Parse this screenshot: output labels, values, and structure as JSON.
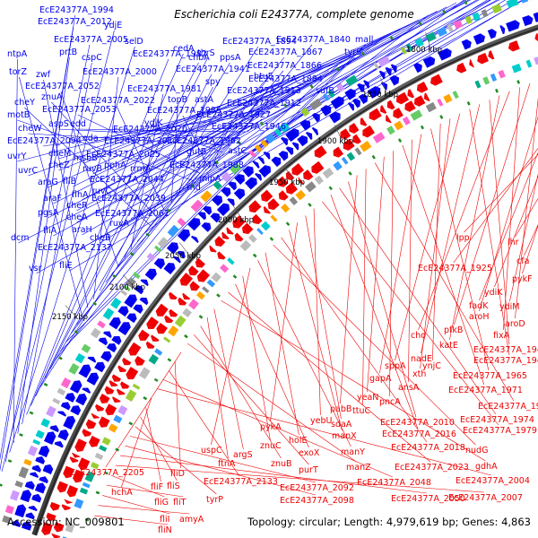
{
  "title": "Escherichia coli E24377A, complete genome",
  "footer": {
    "accession": "Accession: NC_009801",
    "stats": "Topology: circular; Length: 4,979,619 bp; Genes: 4,863"
  },
  "colors": {
    "forward": "#0000ee",
    "reverse": "#ee0000",
    "backbone": "#555555",
    "marker": "#228b22"
  },
  "ticks": [
    "1800 kbp",
    "1850 kbp",
    "1900 kbp",
    "1950 kbp",
    "2000 kbp",
    "2050 kbp",
    "2100 kbp",
    "2150 kbp"
  ],
  "forward_labels": [
    "EcE24377A_1994",
    "EcE24377A_2012",
    "ydjE",
    "EcE24377A_2005",
    "selD",
    "ntpA",
    "prtB",
    "cspC",
    "EcE24377A_1982",
    "cedA",
    "chbA",
    "EcE24377A_1894",
    "thrS",
    "ppsA",
    "EcE24377A_1840",
    "tyrS",
    "mall",
    "EcE24377A_1867",
    "EcE24377A_1866",
    "torZ",
    "zwf",
    "EcE24377A_2000",
    "EcE24377A_1941",
    "btuE",
    "EcE24377A_1884",
    "EcE24377A_2052",
    "spy",
    "EcE24377A_1981",
    "EcE24377A_1913",
    "sufB",
    "cheY",
    "znuA",
    "EcE24377A_2022",
    "topB",
    "astA",
    "EcE24377A_1912",
    "motB",
    "EcE24377A_2053",
    "EcE24377A_1985",
    "EcE24377A_1927",
    "ydjK",
    "cheW",
    "aspS",
    "edd",
    "EcE24377A_2020",
    "EcE24377A_1946",
    "EcE24377A_2094",
    "eda",
    "EcE24377A_2017",
    "EcE24377A_1962",
    "uvrY",
    "cheM",
    "EcE24377A_2025",
    "gutB",
    "astC",
    "uvrC",
    "msbB",
    "cheZ",
    "pphA",
    "EcE24377A_1988",
    "ruvB",
    "rrmA",
    "araG",
    "fliB",
    "mipA",
    "araF",
    "flhA",
    "EcE24377A_2044",
    "rnd",
    "ruvC",
    "cheR",
    "pgsA",
    "EcE24377A_2039",
    "cheA",
    "ruvA",
    "EcE24377A_2061",
    "fliA",
    "araH",
    "cheB",
    "dcm",
    "EcE24377A_2137",
    "fliE",
    "vsr"
  ],
  "reverse_labels": [
    "lpp",
    "lhr",
    "cfa",
    "EcE24377A_1925",
    "pykF",
    "ydiK",
    "fadK",
    "ydiM",
    "aroH",
    "aroD",
    "pfkB",
    "fixA",
    "cho",
    "katE",
    "EcE24377A_1942",
    "nadE",
    "EcE24377A_1947",
    "sppA",
    "xth",
    "ynjC",
    "EcE24377A_1965",
    "gapA",
    "ansA",
    "EcE24377A_1971",
    "pncA",
    "yeaN",
    "EcE24377A_1973",
    "ttuC",
    "pabB",
    "EcE24377A_2010",
    "EcE24377A_1974",
    "EcE24377A_2016",
    "EcE24377A_1979",
    "yebU",
    "sdaA",
    "pykA",
    "manX",
    "EcE24377A_2018",
    "nudG",
    "holE",
    "manY",
    "uspC",
    "znuC",
    "exoX",
    "EcE24377A_2023",
    "gdhA",
    "argS",
    "ftnA",
    "znuB",
    "purT",
    "manZ",
    "EcE24377A_2205",
    "fliD",
    "EcE24377A_2133",
    "EcE24377A_2048",
    "EcE24377A_2004",
    "hchA",
    "fliF",
    "fliS",
    "tyrP",
    "EcE24377A_2092",
    "EcE24377A_2098",
    "EcE24377A_2050",
    "EcE24377A_2007",
    "fliG",
    "fliT",
    "fliI",
    "amyA",
    "fliN"
  ]
}
